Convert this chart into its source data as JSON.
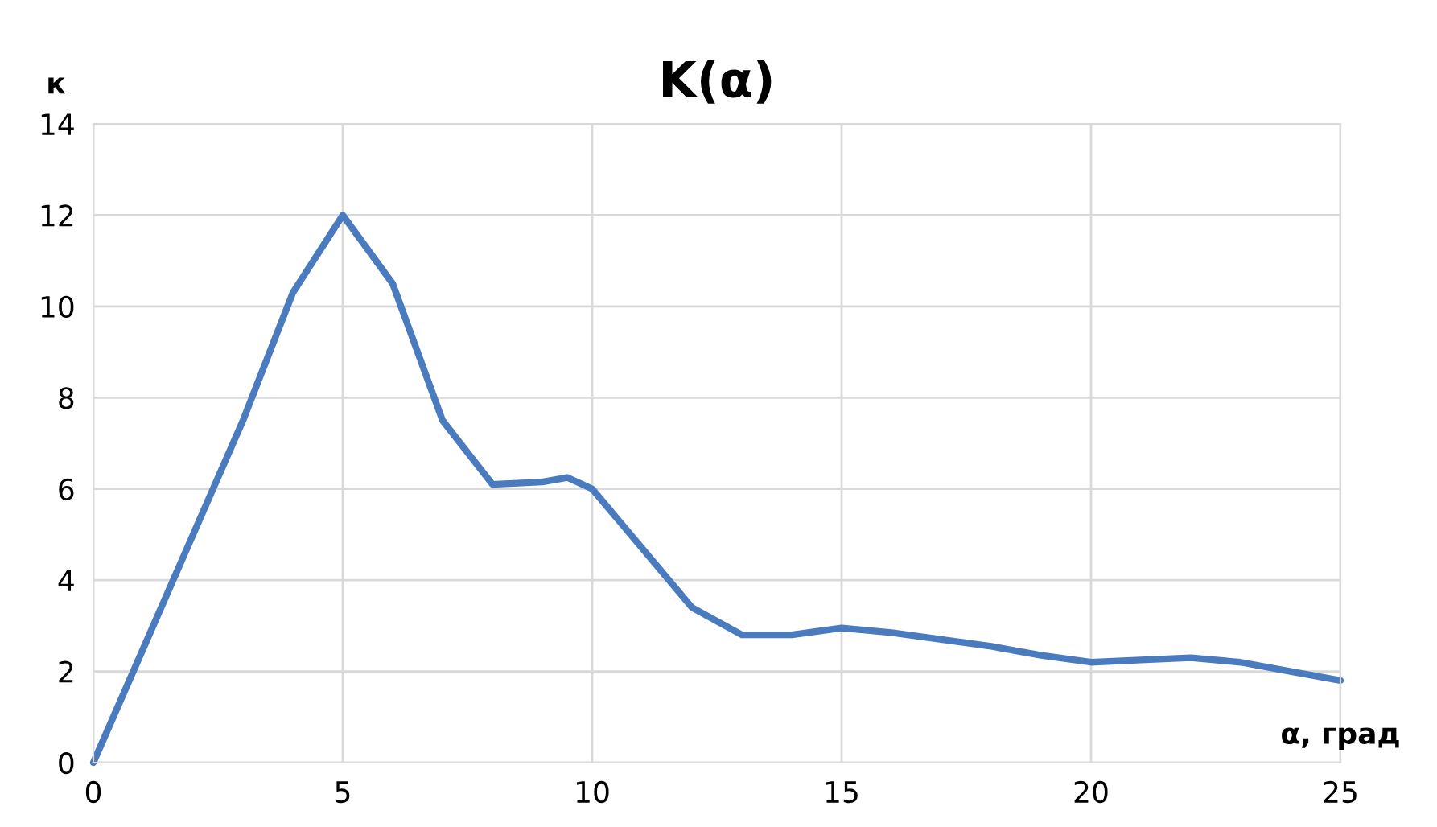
{
  "chart_data": {
    "type": "line",
    "title": "K(α)",
    "xlabel": "α, град",
    "ylabel": "к",
    "x": [
      0,
      1,
      2,
      3,
      4,
      5,
      6,
      7,
      8,
      9,
      9.5,
      10,
      11,
      12,
      13,
      14,
      15,
      16,
      17,
      18,
      19,
      20,
      21,
      22,
      23,
      24,
      25
    ],
    "series": [
      {
        "color": "#4a7bbf",
        "values": [
          0,
          2.5,
          5,
          7.5,
          10.3,
          12,
          10.5,
          7.5,
          6.1,
          6.15,
          6.25,
          6.0,
          4.7,
          3.4,
          2.8,
          2.8,
          2.95,
          2.85,
          2.7,
          2.55,
          2.35,
          2.2,
          2.25,
          2.3,
          2.2,
          2.0,
          1.8
        ]
      }
    ],
    "xlim": [
      0,
      25
    ],
    "xticks": [
      0,
      5,
      10,
      15,
      20,
      25
    ],
    "ylim": [
      0,
      14
    ],
    "yticks": [
      0,
      2,
      4,
      6,
      8,
      10,
      12,
      14
    ],
    "grid": true,
    "marker": "none",
    "line_style": "solid"
  }
}
